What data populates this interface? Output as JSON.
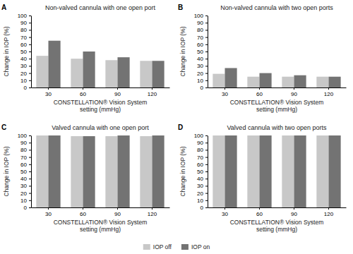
{
  "chart_data": [
    {
      "type": "bar",
      "title": "Non-valved cannula with one open port",
      "annotations": [
        "A"
      ],
      "categories": [
        "30",
        "60",
        "90",
        "120"
      ],
      "series": [
        {
          "name": "IOP off",
          "color": "#c8c8c8",
          "values": [
            44,
            40,
            38,
            37
          ]
        },
        {
          "name": "IOP on",
          "color": "#737373",
          "values": [
            65,
            50,
            42,
            37
          ]
        }
      ],
      "xlabel": "CONSTELLATION® Vision System\nsetting (mmHg)",
      "ylabel": "Change in IOP (%)",
      "ylim": [
        0,
        100
      ],
      "yticks": [
        0,
        10,
        20,
        30,
        40,
        50,
        60,
        70,
        80,
        90,
        100
      ],
      "grid": false,
      "legend": "bottom"
    },
    {
      "type": "bar",
      "title": "Non-valved cannula with two open ports",
      "annotations": [
        "B"
      ],
      "categories": [
        "30",
        "60",
        "90",
        "120"
      ],
      "series": [
        {
          "name": "IOP off",
          "color": "#c8c8c8",
          "values": [
            19,
            15,
            15,
            15
          ]
        },
        {
          "name": "IOP on",
          "color": "#737373",
          "values": [
            27,
            20,
            17,
            15
          ]
        }
      ],
      "xlabel": "CONSTELLATION® Vision System\nsetting (mmHg)",
      "ylabel": "Change in IOP (%)",
      "ylim": [
        0,
        100
      ],
      "yticks": [
        0,
        10,
        20,
        30,
        40,
        50,
        60,
        70,
        80,
        90,
        100
      ],
      "grid": false
    },
    {
      "type": "bar",
      "title": "Valved cannula with one open port",
      "annotations": [
        "C"
      ],
      "categories": [
        "30",
        "60",
        "90",
        "120"
      ],
      "series": [
        {
          "name": "IOP off",
          "color": "#c8c8c8",
          "values": [
            100,
            99,
            99,
            99
          ]
        },
        {
          "name": "IOP on",
          "color": "#737373",
          "values": [
            100,
            99,
            100,
            100
          ]
        }
      ],
      "xlabel": "CONSTELLATION® Vision System\nsetting (mmHg)",
      "ylabel": "Change in IOP (%)",
      "ylim": [
        0,
        100
      ],
      "yticks": [
        0,
        10,
        20,
        30,
        40,
        50,
        60,
        70,
        80,
        90,
        100
      ],
      "grid": false
    },
    {
      "type": "bar",
      "title": "Valved cannula with two open ports",
      "annotations": [
        "D"
      ],
      "categories": [
        "30",
        "60",
        "90",
        "120"
      ],
      "series": [
        {
          "name": "IOP off",
          "color": "#c8c8c8",
          "values": [
            100,
            100,
            100,
            100
          ]
        },
        {
          "name": "IOP on",
          "color": "#737373",
          "values": [
            100,
            100,
            100,
            100
          ]
        }
      ],
      "xlabel": "CONSTELLATION® Vision System\nsetting (mmHg)",
      "ylabel": "Change in IOP (%)",
      "ylim": [
        0,
        100
      ],
      "yticks": [
        0,
        10,
        20,
        30,
        40,
        50,
        60,
        70,
        80,
        90,
        100
      ],
      "grid": false
    }
  ]
}
